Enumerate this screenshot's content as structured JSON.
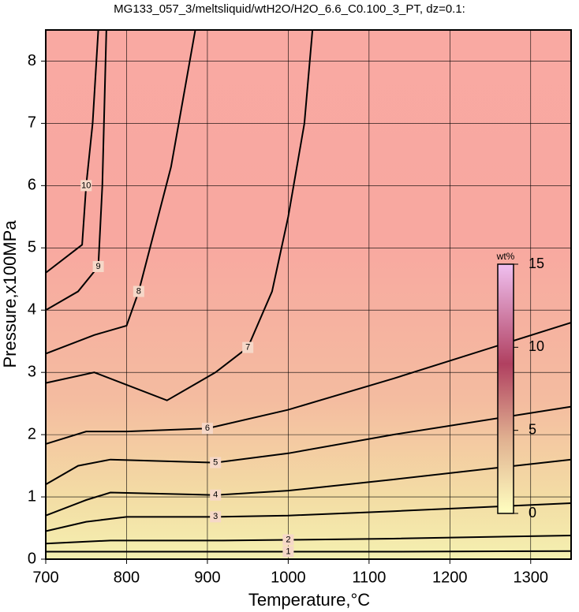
{
  "chart_data": {
    "type": "contour",
    "title": "MG133_057_3/meltsliquid/wtH2O/H2O_6.6_C0.100_3_PT, dz=0.1:",
    "x_label": "Temperature,°C",
    "y_label": "Pressure,x100MPa",
    "xlim": [
      700,
      1350
    ],
    "ylim": [
      0,
      8.5
    ],
    "xticks": [
      700,
      800,
      900,
      1000,
      1100,
      1200,
      1300
    ],
    "yticks": [
      0,
      1,
      2,
      3,
      4,
      5,
      6,
      7,
      8
    ],
    "grid": true,
    "contours": [
      {
        "level": 1,
        "x": [
          700,
          800,
          910,
          1000,
          1130,
          1350
        ],
        "y": [
          0.12,
          0.12,
          0.12,
          0.12,
          0.12,
          0.13
        ]
      },
      {
        "level": 2,
        "x": [
          700,
          780,
          920,
          1000,
          1130,
          1350
        ],
        "y": [
          0.25,
          0.3,
          0.3,
          0.31,
          0.33,
          0.38
        ]
      },
      {
        "level": 3,
        "x": [
          700,
          750,
          800,
          910,
          1000,
          1130,
          1350
        ],
        "y": [
          0.45,
          0.6,
          0.68,
          0.68,
          0.7,
          0.77,
          0.9
        ]
      },
      {
        "level": 4,
        "x": [
          700,
          750,
          780,
          910,
          1000,
          1130,
          1350
        ],
        "y": [
          0.7,
          0.95,
          1.07,
          1.03,
          1.1,
          1.28,
          1.6
        ]
      },
      {
        "level": 5,
        "x": [
          700,
          740,
          780,
          910,
          1000,
          1130,
          1350
        ],
        "y": [
          1.2,
          1.5,
          1.6,
          1.55,
          1.7,
          2.0,
          2.45
        ]
      },
      {
        "level": 6,
        "x": [
          700,
          750,
          800,
          900,
          1000,
          1130,
          1350
        ],
        "y": [
          1.85,
          2.05,
          2.05,
          2.1,
          2.4,
          2.9,
          3.8
        ]
      },
      {
        "level": 7,
        "x": [
          700,
          760,
          850,
          910,
          950,
          980,
          1000,
          1020,
          1030
        ],
        "y": [
          2.83,
          3.0,
          2.55,
          3.0,
          3.4,
          4.3,
          5.5,
          7.0,
          8.5
        ]
      },
      {
        "level": 8,
        "x": [
          700,
          760,
          800,
          815,
          835,
          855,
          885
        ],
        "y": [
          3.3,
          3.6,
          3.75,
          4.3,
          5.3,
          6.3,
          8.5
        ]
      },
      {
        "level": 9,
        "x": [
          700,
          740,
          765,
          770,
          775
        ],
        "y": [
          4.0,
          4.3,
          4.7,
          6.0,
          8.5
        ]
      },
      {
        "level": 10,
        "x": [
          700,
          745,
          750,
          758,
          765
        ],
        "y": [
          4.6,
          5.05,
          6.0,
          7.0,
          8.5
        ]
      }
    ],
    "colorbar": {
      "label": "wt%",
      "lim": [
        0,
        15
      ],
      "ticks": [
        0,
        5,
        10,
        15
      ]
    }
  }
}
